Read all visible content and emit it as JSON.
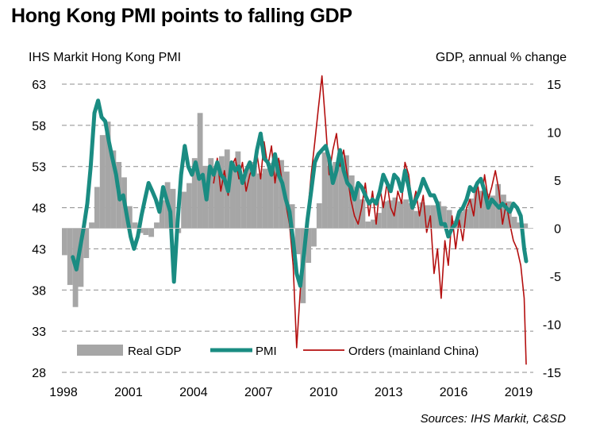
{
  "title": "Hong Kong PMI points to falling GDP",
  "left_axis_title": "IHS Markit Hong Kong PMI",
  "right_axis_title": "GDP, annual % change",
  "source": "Sources:  IHS Markit, C&SD",
  "colors": {
    "gdp": "#a6a6a6",
    "pmi": "#1a8c82",
    "orders": "#b40f0f",
    "grid": "#8c8c8c"
  },
  "chart_data": {
    "type": "line",
    "x_ticks": [
      "1998",
      "2001",
      "2004",
      "2007",
      "2010",
      "2013",
      "2016",
      "2019"
    ],
    "x_range": [
      1998.0,
      2019.75
    ],
    "left_axis": {
      "label": "IHS Markit Hong Kong PMI",
      "ticks": [
        "63",
        "58",
        "53",
        "48",
        "43",
        "38",
        "33",
        "28"
      ],
      "range": [
        28,
        63
      ]
    },
    "right_axis": {
      "label": "GDP, annual % change",
      "ticks": [
        "15",
        "10",
        "5",
        "0",
        "-5",
        "-10",
        "-15"
      ],
      "range": [
        -15,
        15
      ]
    },
    "grid": "dashed horizontal",
    "legend": {
      "placement": "bottom",
      "entries": [
        "Real GDP",
        "PMI",
        "Orders (mainland China)"
      ]
    },
    "series": [
      {
        "name": "Real GDP",
        "kind": "bar",
        "axis": "right",
        "x": [
          1998.0,
          1998.25,
          1998.5,
          1998.75,
          1999.0,
          1999.25,
          1999.5,
          1999.75,
          2000.0,
          2000.25,
          2000.5,
          2000.75,
          2001.0,
          2001.25,
          2001.5,
          2001.75,
          2002.0,
          2002.25,
          2002.5,
          2002.75,
          2003.0,
          2003.25,
          2003.5,
          2003.75,
          2004.0,
          2004.25,
          2004.5,
          2004.75,
          2005.0,
          2005.25,
          2005.5,
          2005.75,
          2006.0,
          2006.25,
          2006.5,
          2006.75,
          2007.0,
          2007.25,
          2007.5,
          2007.75,
          2008.0,
          2008.25,
          2008.5,
          2008.75,
          2009.0,
          2009.25,
          2009.5,
          2009.75,
          2010.0,
          2010.25,
          2010.5,
          2010.75,
          2011.0,
          2011.25,
          2011.5,
          2011.75,
          2012.0,
          2012.25,
          2012.5,
          2012.75,
          2013.0,
          2013.25,
          2013.5,
          2013.75,
          2014.0,
          2014.25,
          2014.5,
          2014.75,
          2015.0,
          2015.25,
          2015.5,
          2015.75,
          2016.0,
          2016.25,
          2016.5,
          2016.75,
          2017.0,
          2017.25,
          2017.5,
          2017.75,
          2018.0,
          2018.25,
          2018.5,
          2018.75,
          2019.0,
          2019.25
        ],
        "values": [
          -2.8,
          -5.9,
          -8.2,
          -6.1,
          -3.1,
          0.6,
          4.3,
          9.7,
          11.1,
          8.1,
          6.9,
          5.3,
          2.3,
          0.6,
          -0.5,
          -0.7,
          -0.9,
          0.6,
          2.9,
          4.8,
          4.1,
          -0.5,
          3.8,
          4.7,
          7.3,
          12.0,
          6.5,
          7.3,
          6.4,
          7.5,
          8.2,
          6.9,
          8.0,
          5.6,
          6.4,
          6.9,
          5.7,
          6.2,
          6.8,
          6.9,
          7.1,
          5.9,
          2.5,
          -2.7,
          -7.8,
          -3.6,
          -1.9,
          2.6,
          7.9,
          6.5,
          6.9,
          6.4,
          7.6,
          5.5,
          4.3,
          3.0,
          0.7,
          0.9,
          1.6,
          2.8,
          2.9,
          3.2,
          2.8,
          3.0,
          2.6,
          1.8,
          2.7,
          2.4,
          2.4,
          2.8,
          2.3,
          1.9,
          0.8,
          1.7,
          2.0,
          3.1,
          4.3,
          3.9,
          3.6,
          3.4,
          4.6,
          3.5,
          2.8,
          1.2,
          0.6,
          0.5
        ]
      },
      {
        "name": "PMI",
        "kind": "line",
        "axis": "left",
        "x": [
          1998.5,
          1998.67,
          1998.83,
          1999.0,
          1999.17,
          1999.33,
          1999.5,
          1999.67,
          1999.83,
          2000.0,
          2000.17,
          2000.33,
          2000.5,
          2000.67,
          2000.83,
          2001.0,
          2001.17,
          2001.33,
          2001.5,
          2001.67,
          2001.83,
          2002.0,
          2002.17,
          2002.33,
          2002.5,
          2002.67,
          2002.83,
          2003.0,
          2003.17,
          2003.33,
          2003.5,
          2003.67,
          2003.83,
          2004.0,
          2004.17,
          2004.33,
          2004.5,
          2004.67,
          2004.83,
          2005.0,
          2005.17,
          2005.33,
          2005.5,
          2005.67,
          2005.83,
          2006.0,
          2006.17,
          2006.33,
          2006.5,
          2006.67,
          2006.83,
          2007.0,
          2007.17,
          2007.33,
          2007.5,
          2007.67,
          2007.83,
          2008.0,
          2008.17,
          2008.33,
          2008.5,
          2008.67,
          2008.83,
          2009.0,
          2009.17,
          2009.33,
          2009.5,
          2009.67,
          2009.83,
          2010.0,
          2010.17,
          2010.33,
          2010.5,
          2010.67,
          2010.83,
          2011.0,
          2011.17,
          2011.33,
          2011.5,
          2011.67,
          2011.83,
          2012.0,
          2012.17,
          2012.33,
          2012.5,
          2012.67,
          2012.83,
          2013.0,
          2013.17,
          2013.33,
          2013.5,
          2013.67,
          2013.83,
          2014.0,
          2014.17,
          2014.33,
          2014.5,
          2014.67,
          2014.83,
          2015.0,
          2015.17,
          2015.33,
          2015.5,
          2015.67,
          2015.83,
          2016.0,
          2016.17,
          2016.33,
          2016.5,
          2016.67,
          2016.83,
          2017.0,
          2017.17,
          2017.33,
          2017.5,
          2017.67,
          2017.83,
          2018.0,
          2018.17,
          2018.33,
          2018.5,
          2018.67,
          2018.83,
          2019.0,
          2019.17,
          2019.33,
          2019.42
        ],
        "values": [
          42.0,
          40.5,
          43.0,
          45.5,
          48.5,
          53.0,
          59.5,
          61.0,
          59.0,
          58.5,
          56.0,
          54.0,
          52.0,
          49.0,
          49.5,
          47.0,
          44.5,
          43.0,
          44.5,
          47.0,
          49.0,
          51.0,
          50.0,
          49.0,
          47.5,
          50.5,
          49.0,
          47.5,
          39.0,
          46.0,
          52.0,
          55.5,
          53.0,
          52.0,
          53.5,
          51.5,
          52.0,
          49.0,
          53.0,
          52.0,
          53.5,
          52.0,
          51.5,
          50.0,
          53.5,
          52.5,
          53.0,
          51.0,
          52.5,
          53.5,
          52.0,
          55.0,
          57.0,
          54.0,
          53.5,
          52.0,
          54.5,
          52.0,
          51.0,
          49.0,
          47.5,
          44.0,
          40.0,
          38.5,
          42.5,
          46.5,
          50.0,
          53.5,
          54.5,
          55.0,
          55.5,
          54.0,
          51.0,
          52.5,
          55.0,
          52.5,
          51.0,
          50.5,
          49.0,
          51.0,
          50.5,
          49.5,
          48.5,
          49.0,
          48.5,
          50.0,
          52.0,
          51.0,
          50.0,
          52.0,
          51.5,
          50.0,
          52.5,
          50.5,
          48.0,
          49.0,
          50.0,
          51.5,
          50.5,
          49.5,
          49.5,
          48.5,
          46.0,
          46.0,
          44.5,
          45.5,
          46.0,
          47.5,
          48.0,
          49.0,
          50.5,
          50.0,
          51.0,
          51.5,
          50.0,
          48.0,
          49.0,
          48.5,
          48.0,
          48.5,
          48.0,
          47.5,
          48.5,
          48.0,
          47.0,
          43.0,
          41.5
        ]
      },
      {
        "name": "Orders (mainland China)",
        "kind": "line",
        "axis": "left",
        "x": [
          2005.0,
          2005.17,
          2005.33,
          2005.5,
          2005.67,
          2005.83,
          2006.0,
          2006.17,
          2006.33,
          2006.5,
          2006.67,
          2006.83,
          2007.0,
          2007.17,
          2007.33,
          2007.5,
          2007.67,
          2007.83,
          2008.0,
          2008.17,
          2008.33,
          2008.5,
          2008.67,
          2008.83,
          2009.0,
          2009.17,
          2009.33,
          2009.5,
          2009.67,
          2009.83,
          2010.0,
          2010.17,
          2010.33,
          2010.5,
          2010.67,
          2010.83,
          2011.0,
          2011.17,
          2011.33,
          2011.5,
          2011.67,
          2011.83,
          2012.0,
          2012.17,
          2012.33,
          2012.5,
          2012.67,
          2012.83,
          2013.0,
          2013.17,
          2013.33,
          2013.5,
          2013.67,
          2013.83,
          2014.0,
          2014.17,
          2014.33,
          2014.5,
          2014.67,
          2014.83,
          2015.0,
          2015.17,
          2015.33,
          2015.5,
          2015.67,
          2015.83,
          2016.0,
          2016.17,
          2016.33,
          2016.5,
          2016.67,
          2016.83,
          2017.0,
          2017.17,
          2017.33,
          2017.5,
          2017.67,
          2017.83,
          2018.0,
          2018.17,
          2018.33,
          2018.5,
          2018.67,
          2018.83,
          2019.0,
          2019.17,
          2019.33,
          2019.42
        ],
        "values": [
          51.0,
          54.0,
          50.0,
          52.5,
          49.5,
          53.0,
          54.0,
          51.5,
          53.5,
          50.0,
          52.0,
          53.0,
          54.5,
          51.5,
          56.0,
          53.0,
          55.5,
          51.0,
          54.0,
          51.0,
          48.5,
          46.0,
          41.0,
          31.0,
          38.0,
          43.0,
          47.0,
          52.0,
          56.0,
          60.0,
          64.0,
          58.0,
          52.0,
          55.0,
          57.0,
          53.0,
          55.0,
          52.0,
          49.0,
          47.0,
          46.0,
          48.0,
          51.0,
          47.0,
          50.0,
          46.0,
          50.5,
          48.0,
          51.0,
          48.0,
          47.0,
          50.0,
          48.5,
          53.5,
          52.0,
          48.0,
          50.0,
          47.0,
          49.5,
          45.0,
          47.0,
          40.0,
          43.0,
          37.0,
          44.0,
          41.0,
          47.0,
          43.0,
          46.5,
          44.0,
          48.0,
          49.0,
          47.0,
          51.0,
          48.0,
          52.0,
          49.0,
          50.5,
          52.5,
          50.0,
          46.0,
          48.5,
          46.0,
          44.0,
          43.0,
          41.0,
          37.0,
          29.0
        ]
      }
    ]
  }
}
